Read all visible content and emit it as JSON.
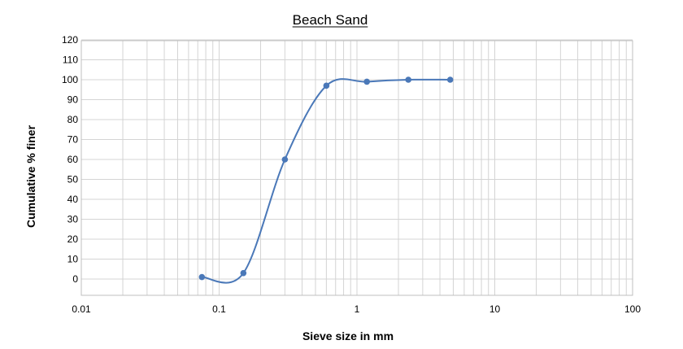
{
  "chart_data": {
    "type": "scatter",
    "title": "Beach Sand",
    "xlabel": "Sieve size in mm",
    "ylabel": "Cumulative % finer",
    "xscale": "log",
    "xlim": [
      0.01,
      100
    ],
    "ylim": [
      -10,
      120
    ],
    "grid": true,
    "legend": "none",
    "x_ticks": [
      "0.01",
      "0.1",
      "1",
      "10",
      "100"
    ],
    "y_ticks": [
      "0",
      "10",
      "20",
      "30",
      "40",
      "50",
      "60",
      "70",
      "80",
      "90",
      "100",
      "110",
      "120"
    ],
    "series": [
      {
        "x": [
          0.075,
          0.15,
          0.3,
          0.6,
          1.18,
          2.36,
          4.75
        ],
        "y": [
          1,
          3,
          60,
          97,
          99,
          100,
          100
        ],
        "color": "#4a78b8",
        "line": "smooth",
        "markers": true
      }
    ]
  }
}
